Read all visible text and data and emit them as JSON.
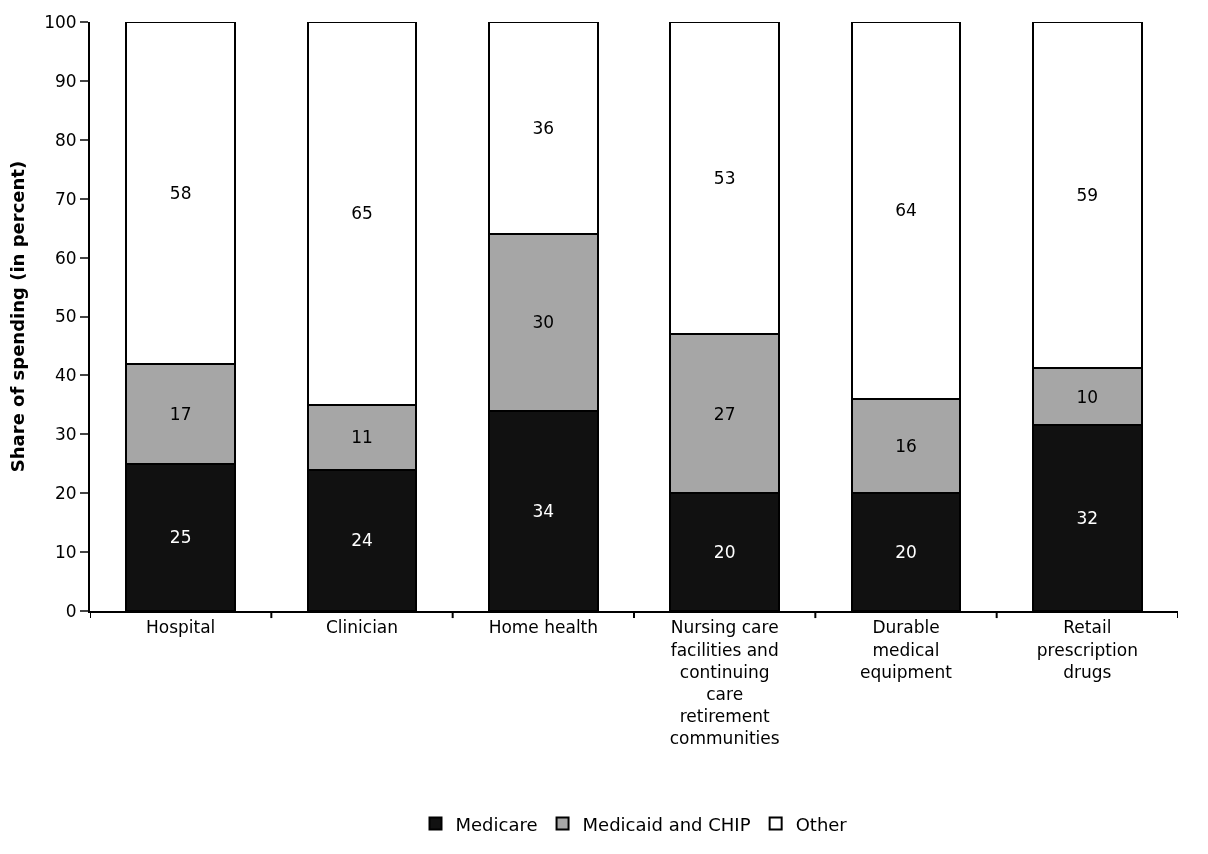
{
  "chart_data": {
    "type": "bar",
    "stacked": true,
    "ylabel": "Share of spending (in percent)",
    "categories": [
      "Hospital",
      "Clinician",
      "Home health",
      "Nursing care facilities and continuing care retirement communities",
      "Durable medical equipment",
      "Retail prescription drugs"
    ],
    "series": [
      {
        "name": "Medicare",
        "color": "#111111",
        "values": [
          25,
          24,
          34,
          20,
          20,
          31.6
        ],
        "value_labels": [
          "25",
          "24",
          "34",
          "20",
          "20",
          "32"
        ]
      },
      {
        "name": "Medicaid and CHIP",
        "color": "#a6a6a6",
        "values": [
          17,
          11,
          30,
          27,
          16,
          9.6
        ],
        "value_labels": [
          "17",
          "11",
          "30",
          "27",
          "16",
          "10"
        ]
      },
      {
        "name": "Other",
        "color": "#ffffff",
        "values": [
          58,
          65,
          36,
          53,
          64,
          58.8
        ],
        "value_labels": [
          "58",
          "65",
          "36",
          "53",
          "64",
          "59"
        ]
      }
    ],
    "ylim": [
      0,
      100
    ],
    "yticks": [
      0,
      10,
      20,
      30,
      40,
      50,
      60,
      70,
      80,
      90,
      100
    ],
    "legend": "bottom"
  }
}
